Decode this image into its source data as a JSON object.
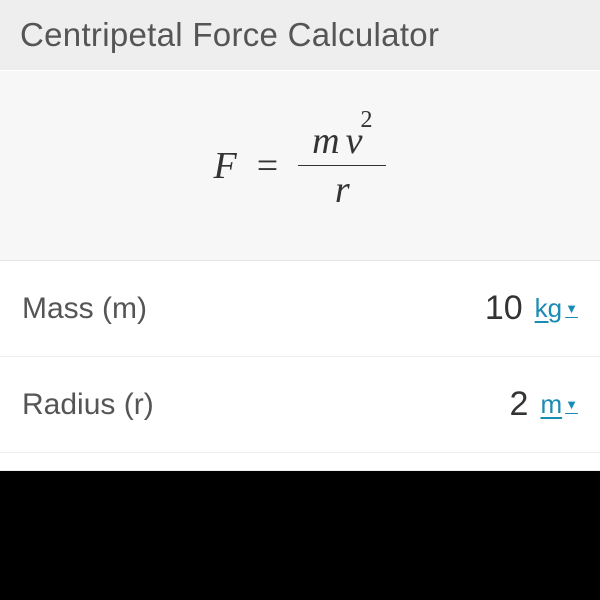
{
  "header": {
    "title": "Centripetal Force Calculator"
  },
  "formula": {
    "lhs": "F",
    "equals": "=",
    "numerator_m": "m",
    "numerator_v": "v",
    "numerator_exp": "2",
    "denominator": "r"
  },
  "inputs": {
    "mass": {
      "label": "Mass (m)",
      "value": "10",
      "unit": "kg"
    },
    "radius": {
      "label": "Radius (r)",
      "value": "2",
      "unit": "m"
    }
  },
  "colors": {
    "header_bg": "#eeeeee",
    "formula_bg": "#f7f7f7",
    "text_primary": "#333333",
    "text_secondary": "#555555",
    "link_color": "#1a8bb3",
    "border_color": "#eeeeee",
    "footer_bg": "#000000"
  }
}
